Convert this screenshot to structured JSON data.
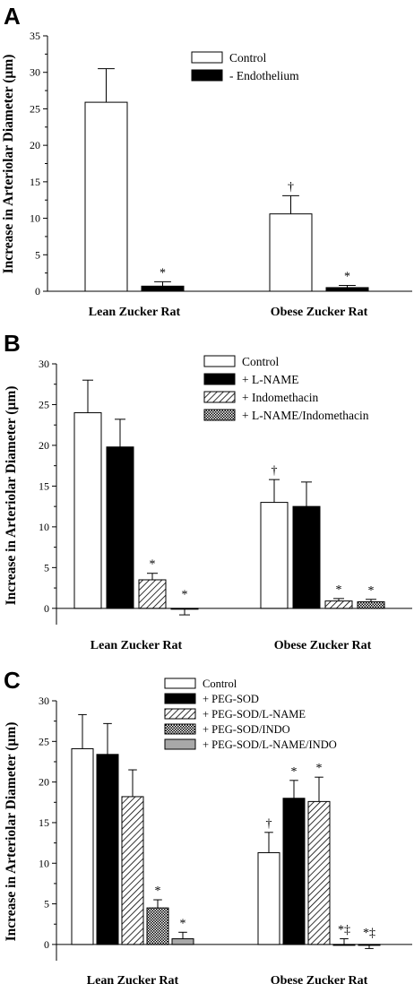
{
  "chart_data": [
    {
      "type": "bar",
      "panel": "A",
      "ylabel": "Increase in Arteriolar Diameter (µm)",
      "ylim": [
        0,
        35
      ],
      "yticks": [
        0,
        5,
        10,
        15,
        20,
        25,
        30,
        35
      ],
      "categories": [
        "Lean Zucker Rat",
        "Obese Zucker Rat"
      ],
      "legend_position": "top-right",
      "series": [
        {
          "name": "Control",
          "fill": "white",
          "values": [
            25.9,
            10.6
          ],
          "errors": [
            4.6,
            2.5
          ],
          "annotations": [
            "",
            "†"
          ]
        },
        {
          "name": "- Endothelium",
          "fill": "black",
          "values": [
            0.7,
            0.5
          ],
          "errors": [
            0.6,
            0.3
          ],
          "annotations": [
            "*",
            "*"
          ]
        }
      ]
    },
    {
      "type": "bar",
      "panel": "B",
      "ylabel": "Increase in Arteriolar Diameter (µm)",
      "ylim": [
        -2,
        30
      ],
      "yticks": [
        0,
        5,
        10,
        15,
        20,
        25,
        30
      ],
      "categories": [
        "Lean Zucker Rat",
        "Obese Zucker Rat"
      ],
      "legend_position": "top-right",
      "series": [
        {
          "name": "Control",
          "fill": "white",
          "values": [
            24.0,
            13.0
          ],
          "errors": [
            4.0,
            2.8
          ],
          "annotations": [
            "",
            "†"
          ]
        },
        {
          "name": "+ L-NAME",
          "fill": "black",
          "values": [
            19.8,
            12.5
          ],
          "errors": [
            3.4,
            3.0
          ],
          "annotations": [
            "",
            ""
          ]
        },
        {
          "name": "+ Indomethacin",
          "fill": "hatch",
          "values": [
            3.5,
            0.9
          ],
          "errors": [
            0.8,
            0.3
          ],
          "annotations": [
            "*",
            "*"
          ]
        },
        {
          "name": "+ L-NAME/Indomethacin",
          "fill": "crosshatch",
          "values": [
            -0.1,
            0.8
          ],
          "errors": [
            0.7,
            0.3
          ],
          "annotations": [
            "*",
            "*"
          ]
        }
      ]
    },
    {
      "type": "bar",
      "panel": "C",
      "ylabel": "Increase in Arteriolar Diameter (µm)",
      "ylim": [
        -2,
        30
      ],
      "yticks": [
        0,
        5,
        10,
        15,
        20,
        25,
        30
      ],
      "categories": [
        "Lean Zucker Rat",
        "Obese Zucker Rat"
      ],
      "legend_position": "top-right",
      "series": [
        {
          "name": "Control",
          "fill": "white",
          "values": [
            24.1,
            11.3
          ],
          "errors": [
            4.2,
            2.5
          ],
          "annotations": [
            "",
            "†"
          ]
        },
        {
          "name": "+ PEG-SOD",
          "fill": "black",
          "values": [
            23.4,
            18.0
          ],
          "errors": [
            3.8,
            2.2
          ],
          "annotations": [
            "",
            "*"
          ]
        },
        {
          "name": "+ PEG-SOD/L-NAME",
          "fill": "hatch",
          "values": [
            18.2,
            17.6
          ],
          "errors": [
            3.3,
            3.0
          ],
          "annotations": [
            "",
            "*"
          ]
        },
        {
          "name": "+ PEG-SOD/INDO",
          "fill": "crosshatch",
          "values": [
            4.5,
            0.0
          ],
          "errors": [
            1.0,
            0.7
          ],
          "annotations": [
            "*",
            "*‡"
          ]
        },
        {
          "name": "+ PEG-SOD/L-NAME/INDO",
          "fill": "gray",
          "values": [
            0.7,
            -0.1
          ],
          "errors": [
            0.8,
            0.4
          ],
          "annotations": [
            "*",
            "*‡"
          ]
        }
      ]
    }
  ]
}
